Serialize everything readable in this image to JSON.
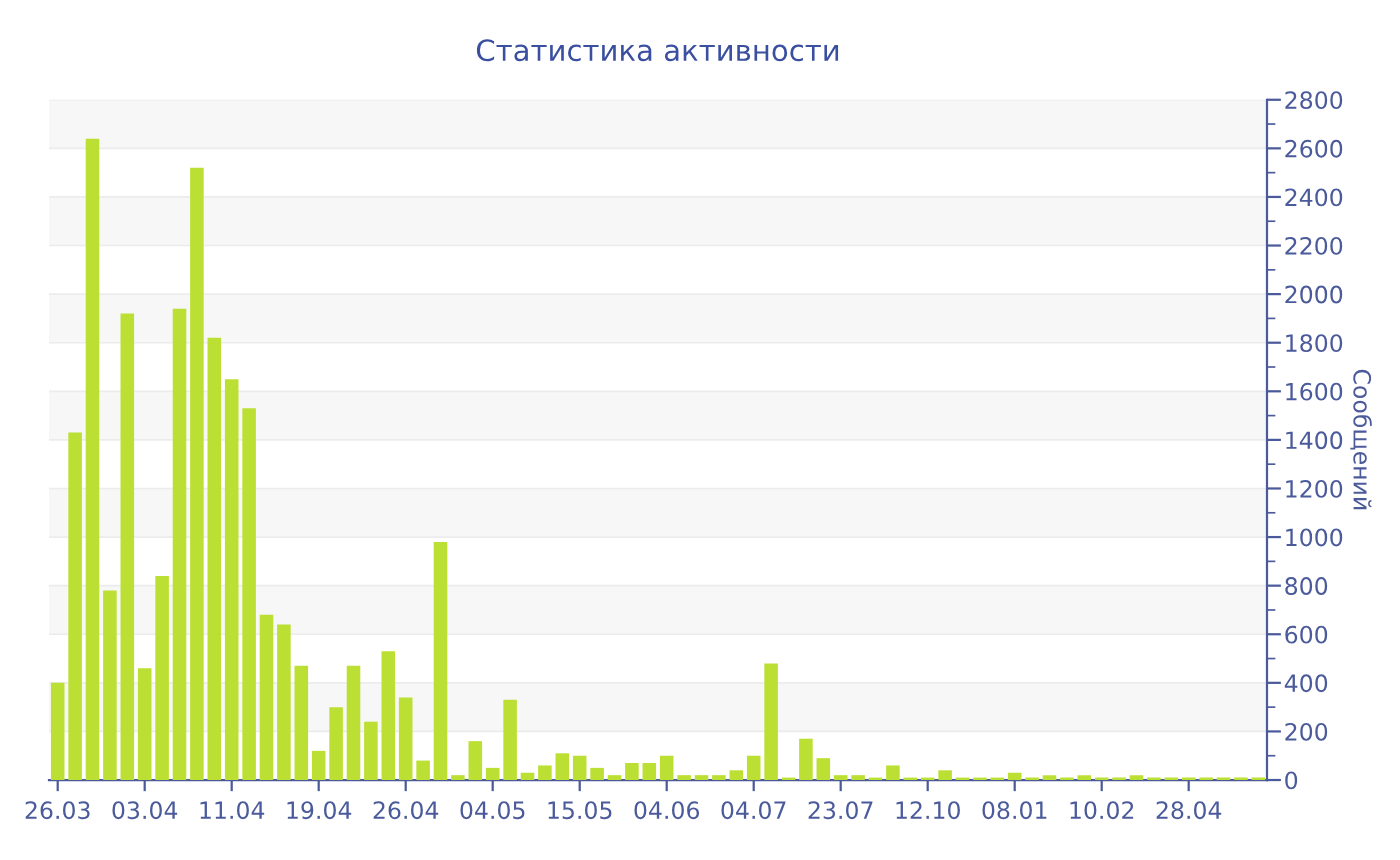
{
  "chart_data": {
    "type": "bar",
    "title": "Статистика активности",
    "ylabel": "Сообщений",
    "categories": [
      "26.03",
      null,
      null,
      null,
      null,
      "03.04",
      null,
      null,
      null,
      null,
      "11.04",
      null,
      null,
      null,
      null,
      "19.04",
      null,
      null,
      null,
      null,
      "26.04",
      null,
      null,
      null,
      null,
      "04.05",
      null,
      null,
      null,
      null,
      "15.05",
      null,
      null,
      null,
      null,
      "04.06",
      null,
      null,
      null,
      null,
      "04.07",
      null,
      null,
      null,
      null,
      "23.07",
      null,
      null,
      null,
      null,
      "12.10",
      null,
      null,
      null,
      null,
      "08.01",
      null,
      null,
      null,
      null,
      "10.02",
      null,
      null,
      null,
      null,
      "28.04",
      null,
      null,
      null,
      null
    ],
    "values": [
      400,
      1430,
      2640,
      780,
      1920,
      460,
      840,
      1940,
      2520,
      1820,
      1650,
      1530,
      680,
      640,
      470,
      120,
      300,
      470,
      240,
      530,
      340,
      80,
      980,
      20,
      160,
      50,
      330,
      30,
      60,
      110,
      100,
      50,
      20,
      70,
      70,
      100,
      20,
      20,
      20,
      40,
      100,
      480,
      10,
      170,
      90,
      20,
      20,
      10,
      60,
      10,
      10,
      40,
      10,
      10,
      10,
      30,
      10,
      20,
      10,
      20,
      10,
      10,
      20,
      10,
      10,
      10,
      10,
      10,
      10,
      10
    ],
    "color": "#bbe033",
    "ylim": [
      0,
      2800
    ],
    "yticks": [
      0,
      200,
      400,
      600,
      800,
      1000,
      1200,
      1400,
      1600,
      1800,
      2000,
      2200,
      2400,
      2600,
      2800
    ],
    "grid": "y",
    "legend": false
  }
}
